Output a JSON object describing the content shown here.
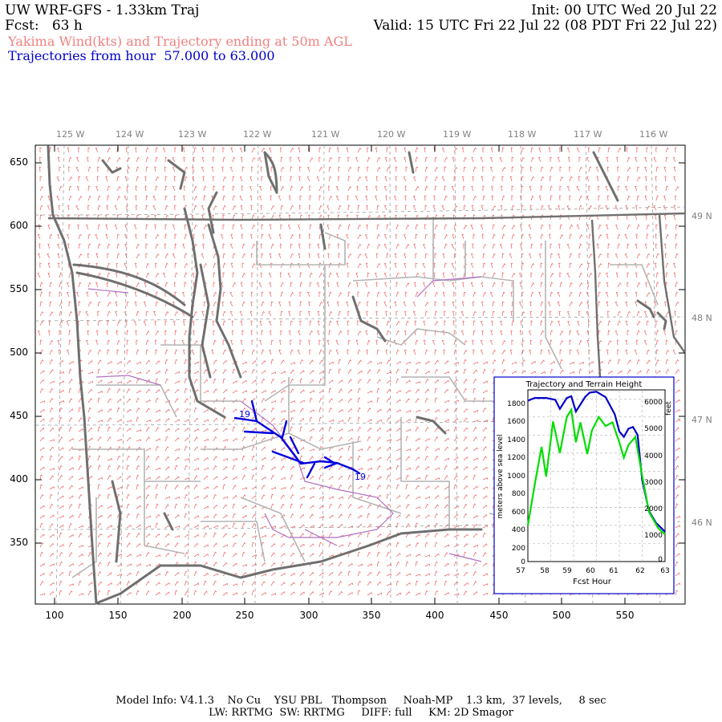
{
  "header": {
    "title": "UW WRF-GFS - 1.33km Traj",
    "init": "Init: 00 UTC Wed 20 Jul 22",
    "fcst_label": "Fcst:",
    "fcst_value": "63 h",
    "valid": "Valid: 15 UTC Fri 22 Jul 22 (08 PDT Fri 22 Jul 22)",
    "subtitle": "Yakima Wind(kts) and Trajectory ending at 50m AGL",
    "traj_prefix": "Trajectories from hour",
    "traj_from": "57.000",
    "traj_to_word": "to",
    "traj_to": "63.000"
  },
  "map": {
    "lon_labels": [
      "125 W",
      "124 W",
      "123 W",
      "122 W",
      "121 W",
      "120 W",
      "119 W",
      "118 W",
      "117 W",
      "116 W"
    ],
    "lat_labels": [
      "49 N",
      "48 N",
      "47 N",
      "46 N"
    ],
    "y_ticks": [
      "650",
      "600",
      "550",
      "500",
      "450",
      "400",
      "350"
    ],
    "x_ticks": [
      "100",
      "150",
      "200",
      "250",
      "300",
      "350",
      "400",
      "450",
      "500",
      "550"
    ],
    "traj_labels": [
      "19",
      "19"
    ],
    "colors": {
      "wind": "#f06b6b",
      "coast": "#707070",
      "border": "#b4b4b4",
      "river": "#b070c0",
      "traj": "#0000dd"
    }
  },
  "inset": {
    "title": "Trajectory and Terrain Height",
    "ylabel_left": "meters above sea level",
    "ylabel_right": "feet",
    "xlabel": "Fcst Hour",
    "left_ticks": [
      "1800",
      "1600",
      "1400",
      "1200",
      "1000",
      "800",
      "600",
      "400",
      "200",
      "0"
    ],
    "right_ticks": [
      "6000",
      "5000",
      "4000",
      "3000",
      "2000",
      "1000",
      "0"
    ],
    "x_ticks": [
      "57",
      "58",
      "59",
      "60",
      "61",
      "62",
      "63"
    ]
  },
  "chart_data": {
    "type": "line",
    "title": "Trajectory and Terrain Height",
    "xlabel": "Fcst Hour",
    "ylabel": "meters above sea level",
    "xlim": [
      57,
      63
    ],
    "ylim": [
      0,
      1900
    ],
    "series": [
      {
        "name": "",
        "color": "#0000cc",
        "x": [
          57.0,
          57.3,
          57.8,
          58.2,
          58.4,
          58.7,
          58.9,
          59.1,
          59.5,
          59.7,
          60.0,
          60.4,
          60.8,
          61.0,
          61.2,
          61.4,
          61.6,
          61.8,
          62.0,
          62.3,
          62.6,
          63.0
        ],
        "values": [
          1780,
          1810,
          1810,
          1790,
          1690,
          1810,
          1830,
          1660,
          1820,
          1870,
          1880,
          1820,
          1630,
          1440,
          1380,
          1470,
          1490,
          1400,
          900,
          560,
          430,
          330
        ]
      },
      {
        "name": "",
        "color": "#00dd00",
        "x": [
          57.0,
          57.3,
          57.6,
          57.8,
          58.1,
          58.4,
          58.7,
          58.9,
          59.1,
          59.3,
          59.6,
          59.8,
          60.1,
          60.4,
          60.7,
          61.0,
          61.2,
          61.4,
          61.7,
          62.0,
          62.3,
          62.7,
          63.0
        ],
        "values": [
          400,
          850,
          1270,
          940,
          1550,
          1200,
          1600,
          1680,
          1320,
          1540,
          1190,
          1450,
          1600,
          1500,
          1540,
          1320,
          1150,
          1290,
          1380,
          950,
          550,
          370,
          300
        ]
      }
    ]
  },
  "footer": {
    "line1": "Model Info: V4.1.3    No Cu    YSU PBL   Thompson     Noah-MP    1.3 km,  37 levels,     8 sec",
    "line2": "LW: RRTMG  SW: RRTMG     DIFF: full     KM: 2D Smagor"
  }
}
